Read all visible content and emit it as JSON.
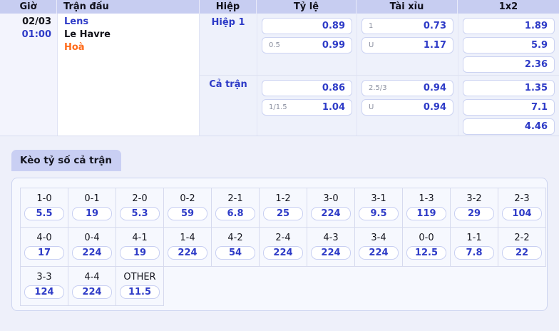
{
  "colors": {
    "accent_blue": "#2e3bc7",
    "result_orange": "#ff6b1a",
    "header_bg": "#c7cdf1",
    "tab_bg": "#c9cff3",
    "page_bg": "#eef0fa"
  },
  "match_table": {
    "headers": [
      "Giờ",
      "Trận đấu",
      "Hiệp",
      "Tỷ lệ",
      "Tài xỉu",
      "1x2"
    ],
    "match": {
      "date": "02/03",
      "time": "01:00",
      "home": "Lens",
      "away": "Le Havre",
      "result": "Hoà"
    },
    "sections": [
      {
        "label": "Hiệp 1",
        "handicap": [
          {
            "hdp": "",
            "odds": "0.89"
          },
          {
            "hdp": "0.5",
            "odds": "0.99"
          }
        ],
        "over_under": [
          {
            "hdp": "1",
            "odds": "0.73"
          },
          {
            "hdp": "U",
            "odds": "1.17"
          }
        ],
        "one_x_two": [
          "1.89",
          "5.9",
          "2.36"
        ]
      },
      {
        "label": "Cả trận",
        "handicap": [
          {
            "hdp": "",
            "odds": "0.86"
          },
          {
            "hdp": "1/1.5",
            "odds": "1.04"
          }
        ],
        "over_under": [
          {
            "hdp": "2.5/3",
            "odds": "0.94"
          },
          {
            "hdp": "U",
            "odds": "0.94"
          }
        ],
        "one_x_two": [
          "1.35",
          "7.1",
          "4.46"
        ]
      }
    ]
  },
  "scores": {
    "tab_label": "Kèo tỷ số cả trận",
    "rows": [
      [
        {
          "score": "1-0",
          "odds": "5.5"
        },
        {
          "score": "0-1",
          "odds": "19"
        },
        {
          "score": "2-0",
          "odds": "5.3"
        },
        {
          "score": "0-2",
          "odds": "59"
        },
        {
          "score": "2-1",
          "odds": "6.8"
        },
        {
          "score": "1-2",
          "odds": "25"
        },
        {
          "score": "3-0",
          "odds": "224"
        },
        {
          "score": "3-1",
          "odds": "9.5"
        },
        {
          "score": "1-3",
          "odds": "119"
        },
        {
          "score": "3-2",
          "odds": "29"
        },
        {
          "score": "2-3",
          "odds": "104"
        }
      ],
      [
        {
          "score": "4-0",
          "odds": "17"
        },
        {
          "score": "0-4",
          "odds": "224"
        },
        {
          "score": "4-1",
          "odds": "19"
        },
        {
          "score": "1-4",
          "odds": "224"
        },
        {
          "score": "4-2",
          "odds": "54"
        },
        {
          "score": "2-4",
          "odds": "224"
        },
        {
          "score": "4-3",
          "odds": "224"
        },
        {
          "score": "3-4",
          "odds": "224"
        },
        {
          "score": "0-0",
          "odds": "12.5"
        },
        {
          "score": "1-1",
          "odds": "7.8"
        },
        {
          "score": "2-2",
          "odds": "22"
        }
      ],
      [
        {
          "score": "3-3",
          "odds": "124"
        },
        {
          "score": "4-4",
          "odds": "224"
        },
        {
          "score": "OTHER",
          "odds": "11.5"
        }
      ]
    ]
  }
}
